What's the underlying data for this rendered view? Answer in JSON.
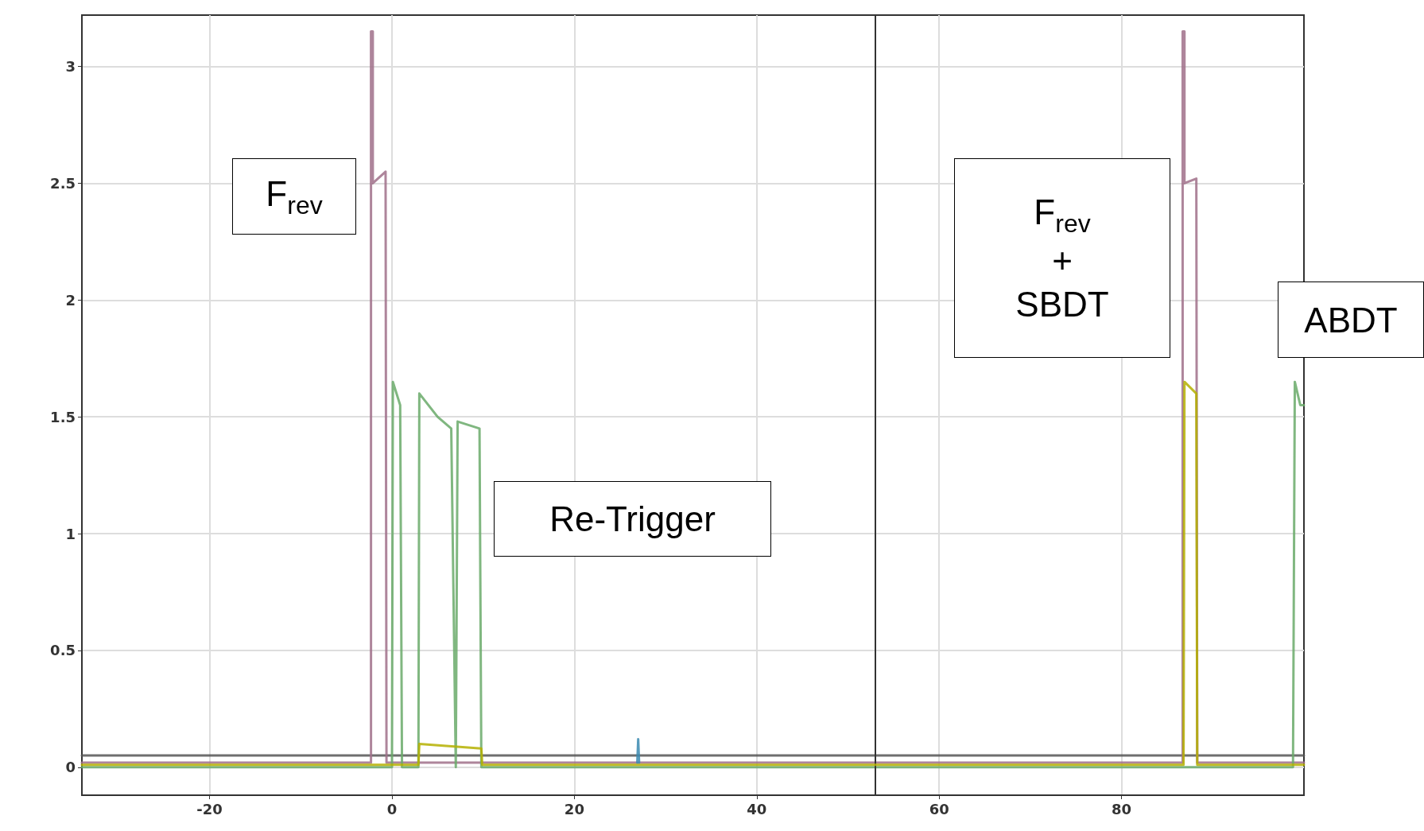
{
  "chart_data": {
    "type": "line",
    "xlim": [
      -34,
      100
    ],
    "xticks": [
      -20,
      0,
      20,
      40,
      60,
      80
    ],
    "ylim": [
      -0.12,
      3.22
    ],
    "yticks": [
      0,
      0.5,
      1,
      1.5,
      2,
      2.5,
      3
    ],
    "grid": true,
    "marker": "none",
    "line_style": "solid",
    "series": [
      {
        "color": "#555555",
        "x": [
          -34,
          100
        ],
        "values": [
          0.05,
          0.05
        ]
      },
      {
        "color": "#a0708a",
        "x": [
          -34,
          -2.3,
          -2.3,
          -2.1,
          -2.1,
          -0.7,
          -0.6,
          86.7,
          86.7,
          86.9,
          86.9,
          88.2,
          88.3,
          100
        ],
        "values": [
          0.02,
          0.02,
          3.15,
          3.15,
          2.5,
          2.55,
          0.02,
          0.02,
          3.15,
          3.15,
          2.5,
          2.52,
          0.02,
          0.02
        ]
      },
      {
        "color": "#6aaa6a",
        "x": [
          -34,
          0,
          0.1,
          0.9,
          1.1,
          2.9,
          3,
          5,
          6.5,
          7,
          7.2,
          9.6,
          9.8,
          98.8,
          99,
          99.6,
          100
        ],
        "values": [
          0,
          0,
          1.65,
          1.55,
          0,
          0,
          1.6,
          1.5,
          1.45,
          0,
          1.48,
          1.45,
          0,
          0,
          1.65,
          1.55,
          1.55
        ]
      },
      {
        "color": "#b5b000",
        "x": [
          -34,
          2.9,
          3,
          9.8,
          9.9,
          86.8,
          86.9,
          88.2,
          88.3,
          100
        ],
        "values": [
          0.01,
          0.01,
          0.1,
          0.08,
          0.01,
          0.01,
          1.65,
          1.6,
          0.01,
          0.01
        ]
      },
      {
        "color": "#3a8ab0",
        "x": [
          26.9,
          27,
          27.1
        ],
        "values": [
          0.02,
          0.12,
          0.02
        ]
      }
    ],
    "ref_lines": [
      {
        "axis": "x",
        "value": 53,
        "color": "#333333"
      }
    ],
    "annotations": [
      "F$_{rev}$",
      "Re-Trigger",
      "F$_{rev}$\n+\nSBDT",
      "ABDT"
    ]
  }
}
